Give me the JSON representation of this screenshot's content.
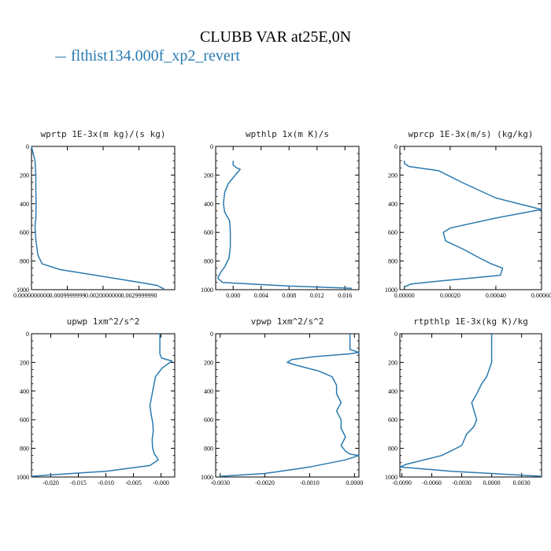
{
  "title": "CLUBB VAR at25E,0N",
  "legend": {
    "label": "flthist134.000f_xp2_revert",
    "color": "#2a7ab0"
  },
  "chart_data": [
    {
      "type": "line",
      "title": "wprtp  1E-3x(m kg)/(s kg)",
      "xlim": [
        0.0,
        0.004
      ],
      "ylim": [
        1000,
        0
      ],
      "xticks": [
        0.0,
        0.001,
        0.002,
        0.003
      ],
      "xtick_labels": [
        "0.0000000000",
        "0.0009999999",
        "0.0020000000",
        "0.0029999990"
      ],
      "yticks": [
        0,
        200,
        400,
        600,
        800,
        1000
      ],
      "series": [
        {
          "x": [
            0.0,
            0.0001,
            0.00012,
            0.00012,
            0.00013,
            0.00012,
            0.0001,
            0.00012,
            0.00018,
            0.0003,
            0.0008,
            0.0018,
            0.0028,
            0.0035,
            0.0037
          ],
          "y": [
            0,
            100,
            200,
            300,
            400,
            500,
            560,
            650,
            760,
            820,
            860,
            900,
            940,
            970,
            995
          ]
        }
      ]
    },
    {
      "type": "line",
      "title": "wpthlp  1x(m K)/s",
      "xlim": [
        -0.0025,
        0.018
      ],
      "ylim": [
        1000,
        0
      ],
      "xticks": [
        0.0,
        0.004,
        0.008,
        0.012,
        0.016
      ],
      "xtick_labels": [
        "0.000",
        "0.004",
        "0.008",
        "0.012",
        "0.016"
      ],
      "yticks": [
        0,
        200,
        400,
        600,
        800,
        1000
      ],
      "series": [
        {
          "x": [
            0.0,
            0.0,
            0.0005,
            0.001,
            0.0003,
            -0.0007,
            -0.0012,
            -0.0014,
            -0.0012,
            -0.0005,
            -0.0004,
            -0.0004,
            -0.0006,
            -0.0012,
            -0.0018,
            -0.0022,
            -0.0015,
            0.008,
            0.017
          ],
          "y": [
            100,
            130,
            150,
            160,
            200,
            260,
            320,
            400,
            460,
            520,
            600,
            700,
            780,
            840,
            880,
            920,
            950,
            975,
            990
          ]
        }
      ]
    },
    {
      "type": "line",
      "title": "wprcp  1E-3x(m/s) (kg/kg)",
      "xlim": [
        -2e-05,
        0.0006
      ],
      "ylim": [
        1000,
        0
      ],
      "xticks": [
        0.0,
        0.0002,
        0.0004,
        0.0006
      ],
      "xtick_labels": [
        "0.00000",
        "0.00020",
        "0.00040",
        "0.00060"
      ],
      "yticks": [
        0,
        200,
        400,
        600,
        800,
        1000
      ],
      "series": [
        {
          "x": [
            0.0,
            0.0,
            2e-05,
            0.00015,
            0.00025,
            0.0004,
            0.0006,
            0.0004,
            0.0002,
            0.00017,
            0.00018,
            0.00026,
            0.00033,
            0.00038,
            0.00043,
            0.00042,
            0.00015,
            3e-05,
            0.0
          ],
          "y": [
            100,
            120,
            140,
            170,
            250,
            360,
            440,
            500,
            570,
            600,
            660,
            720,
            780,
            820,
            850,
            900,
            940,
            960,
            980
          ]
        }
      ]
    },
    {
      "type": "line",
      "title": "upwp  1xm^2/s^2",
      "xlim": [
        -0.0235,
        0.0025
      ],
      "ylim": [
        1000,
        0
      ],
      "xticks": [
        -0.02,
        -0.015,
        -0.01,
        -0.005,
        0.0
      ],
      "xtick_labels": [
        "-0.020",
        "-0.015",
        "-0.010",
        "-0.005",
        "-0.000"
      ],
      "yticks": [
        0,
        200,
        400,
        600,
        800,
        1000
      ],
      "series": [
        {
          "x": [
            -0.0002,
            -0.0002,
            0.0001,
            0.002,
            0.0002,
            -0.001,
            -0.0015,
            -0.002,
            -0.0018,
            -0.0015,
            -0.0014,
            -0.0016,
            -0.0015,
            -0.0012,
            -0.0008,
            -0.0005,
            -0.002,
            -0.01,
            -0.02,
            -0.0235
          ],
          "y": [
            0,
            140,
            170,
            190,
            240,
            300,
            400,
            500,
            560,
            620,
            680,
            740,
            800,
            840,
            860,
            880,
            920,
            960,
            985,
            995
          ]
        }
      ]
    },
    {
      "type": "line",
      "title": "vpwp  1xm^2/s^2",
      "xlim": [
        -0.0031,
        0.0001
      ],
      "ylim": [
        1000,
        0
      ],
      "xticks": [
        -0.003,
        -0.002,
        -0.001,
        0.0
      ],
      "xtick_labels": [
        "-0.0030",
        "-0.0020",
        "-0.0010",
        "0.0000"
      ],
      "yticks": [
        0,
        200,
        400,
        600,
        800,
        1000
      ],
      "series": [
        {
          "x": [
            -0.0001,
            -0.0001,
            0.0001,
            -0.0001,
            -0.0009,
            -0.0014,
            -0.0015,
            -0.0013,
            -0.0008,
            -0.0005,
            -0.0004,
            -0.0004,
            -0.0003,
            -0.0004,
            -0.0003,
            -0.0003,
            -0.0002,
            -0.0003,
            -0.0002,
            -0.0001,
            0.0001,
            -0.0002,
            -0.001,
            -0.002,
            -0.003
          ],
          "y": [
            0,
            110,
            130,
            140,
            160,
            180,
            200,
            220,
            260,
            300,
            360,
            420,
            480,
            540,
            600,
            660,
            720,
            780,
            820,
            840,
            850,
            880,
            930,
            975,
            995
          ]
        }
      ]
    },
    {
      "type": "line",
      "title": "rtpthlp  1E-3x(kg K)/kg",
      "xlim": [
        -0.0092,
        0.005
      ],
      "ylim": [
        1000,
        0
      ],
      "xticks": [
        -0.009,
        -0.006,
        -0.003,
        0.0,
        0.003
      ],
      "xtick_labels": [
        "-0.0090",
        "-0.0060",
        "-0.0030",
        "0.0000",
        "0.0030"
      ],
      "yticks": [
        0,
        200,
        400,
        600,
        800,
        1000
      ],
      "series": [
        {
          "x": [
            0.0,
            0.0,
            -0.0005,
            -0.001,
            -0.0015,
            -0.002,
            -0.0018,
            -0.0015,
            -0.0018,
            -0.0025,
            -0.003,
            -0.005,
            -0.0085,
            -0.0092,
            -0.004,
            0.005
          ],
          "y": [
            0,
            200,
            300,
            350,
            420,
            480,
            530,
            600,
            650,
            700,
            780,
            850,
            910,
            930,
            960,
            995
          ]
        }
      ]
    }
  ]
}
